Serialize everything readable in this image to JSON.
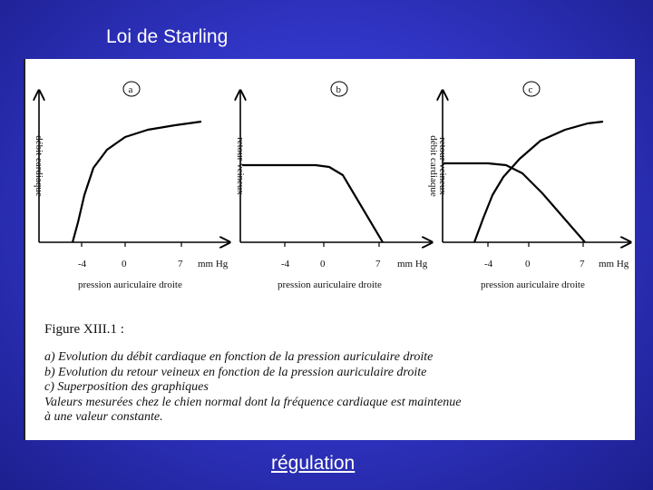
{
  "slide": {
    "title": "Loi de Starling",
    "footer_link": "régulation"
  },
  "panels": [
    {
      "letter": "a",
      "y_labels": [
        "débit cardiaque"
      ],
      "x_ticks": [
        "-4",
        "0",
        "7"
      ],
      "x_unit": "mm Hg",
      "x_label": "pression auriculaire droite"
    },
    {
      "letter": "b",
      "y_labels": [
        "retour veineux"
      ],
      "x_ticks": [
        "-4",
        "0",
        "7"
      ],
      "x_unit": "mm Hg",
      "x_label": "pression auriculaire droite"
    },
    {
      "letter": "c",
      "y_labels": [
        "débit cardiaque",
        "retour veineux"
      ],
      "x_ticks": [
        "-4",
        "0",
        "7"
      ],
      "x_unit": "mm Hg",
      "x_label": "pression auriculaire droite"
    }
  ],
  "caption": {
    "title": "Figure XIII.1 :",
    "lines": [
      "a) Evolution du débit cardiaque en fonction de la pression auriculaire droite",
      "b) Evolution du retour veineux en fonction de la pression auriculaire droite",
      "c) Superposition des graphiques",
      "Valeurs mesurées chez le chien normal dont la fréquence cardiaque est maintenue",
      "à une valeur constante."
    ]
  }
}
